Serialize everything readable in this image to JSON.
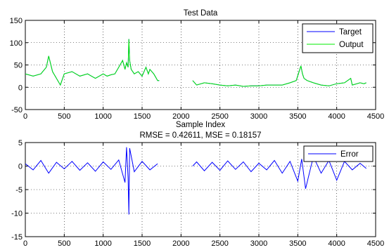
{
  "chart_data": [
    {
      "type": "line",
      "title": "Test Data",
      "xlabel": "Sample Index",
      "ylabel": "",
      "xlim": [
        0,
        4500
      ],
      "ylim": [
        -50,
        150
      ],
      "xticks": [
        0,
        500,
        1000,
        1500,
        2000,
        2500,
        3000,
        3500,
        4000,
        4500
      ],
      "yticks": [
        -50,
        0,
        50,
        100,
        150
      ],
      "grid": true,
      "legend": "top-right",
      "series": [
        {
          "name": "Target",
          "color": "#0000ff",
          "x": [
            0,
            100,
            200,
            270,
            300,
            350,
            400,
            450,
            500,
            600,
            700,
            800,
            900,
            1000,
            1050,
            1100,
            1150,
            1200,
            1250,
            1280,
            1300,
            1320,
            1330,
            1340,
            1360,
            1400,
            1450,
            1500,
            1550,
            1580,
            1600,
            1650,
            1700,
            1720,
            2150,
            2200,
            2300,
            2400,
            2500,
            2600,
            2700,
            2800,
            2900,
            3000,
            3100,
            3200,
            3300,
            3400,
            3480,
            3540,
            3560,
            3580,
            3620,
            3700,
            3800,
            3900,
            4000,
            4100,
            4180,
            4200,
            4300,
            4350,
            4380
          ],
          "y": [
            30,
            25,
            30,
            45,
            70,
            35,
            20,
            5,
            30,
            35,
            25,
            30,
            20,
            30,
            25,
            28,
            30,
            45,
            60,
            40,
            55,
            45,
            108,
            60,
            40,
            30,
            35,
            25,
            45,
            30,
            40,
            30,
            15,
            15,
            15,
            5,
            10,
            8,
            5,
            3,
            5,
            2,
            3,
            3,
            5,
            5,
            5,
            10,
            15,
            48,
            30,
            20,
            15,
            10,
            5,
            3,
            8,
            10,
            20,
            5,
            10,
            8,
            10
          ]
        },
        {
          "name": "Output",
          "color": "#00ee00",
          "x": [
            0,
            100,
            200,
            270,
            300,
            350,
            400,
            450,
            500,
            600,
            700,
            800,
            900,
            1000,
            1050,
            1100,
            1150,
            1200,
            1250,
            1280,
            1300,
            1320,
            1330,
            1340,
            1360,
            1400,
            1450,
            1500,
            1550,
            1580,
            1600,
            1650,
            1700,
            1720,
            2150,
            2200,
            2300,
            2400,
            2500,
            2600,
            2700,
            2800,
            2900,
            3000,
            3100,
            3200,
            3300,
            3400,
            3480,
            3540,
            3560,
            3580,
            3620,
            3700,
            3800,
            3900,
            4000,
            4100,
            4180,
            4200,
            4300,
            4350,
            4380
          ],
          "y": [
            30,
            25,
            30,
            45,
            70,
            35,
            20,
            5,
            30,
            35,
            25,
            30,
            20,
            30,
            25,
            28,
            30,
            45,
            60,
            40,
            55,
            45,
            108,
            60,
            40,
            30,
            35,
            25,
            45,
            30,
            40,
            30,
            15,
            15,
            15,
            5,
            10,
            8,
            5,
            3,
            5,
            2,
            3,
            3,
            5,
            5,
            5,
            10,
            15,
            48,
            30,
            20,
            15,
            10,
            5,
            3,
            8,
            10,
            20,
            5,
            10,
            8,
            10
          ]
        }
      ]
    },
    {
      "type": "line",
      "title": "RMSE = 0.42611, MSE = 0.18157",
      "xlabel": "",
      "ylabel": "",
      "xlim": [
        0,
        4500
      ],
      "ylim": [
        -15,
        5
      ],
      "xticks": [
        0,
        500,
        1000,
        1500,
        2000,
        2500,
        3000,
        3500,
        4000,
        4500
      ],
      "yticks": [
        -15,
        -10,
        -5,
        0,
        5
      ],
      "grid": true,
      "legend": "top-right",
      "series": [
        {
          "name": "Error",
          "color": "#0000ff",
          "x": [
            0,
            100,
            200,
            300,
            400,
            500,
            600,
            700,
            800,
            900,
            1000,
            1100,
            1200,
            1280,
            1300,
            1320,
            1330,
            1340,
            1400,
            1500,
            1600,
            1700,
            2150,
            2200,
            2300,
            2400,
            2500,
            2600,
            2700,
            2800,
            2900,
            3000,
            3100,
            3200,
            3300,
            3400,
            3500,
            3550,
            3600,
            3700,
            3800,
            3900,
            4000,
            4100,
            4200,
            4300,
            4380
          ],
          "y": [
            0.5,
            -0.8,
            1.2,
            -1.5,
            0.8,
            -0.6,
            1.0,
            -0.9,
            0.7,
            -1.1,
            0.9,
            -0.7,
            1.3,
            -3.5,
            4.0,
            -2.5,
            -10.3,
            3.8,
            -1.2,
            1.0,
            -0.8,
            0.5,
            0,
            0.9,
            -1.0,
            0.8,
            -0.9,
            1.1,
            -0.7,
            0.9,
            -1.2,
            0.6,
            -0.8,
            1.2,
            -1.5,
            1.0,
            -3.2,
            1.5,
            -4.8,
            2.0,
            -1.5,
            1.2,
            -3.0,
            1.0,
            -0.8,
            0.6,
            -0.5
          ]
        }
      ]
    }
  ]
}
